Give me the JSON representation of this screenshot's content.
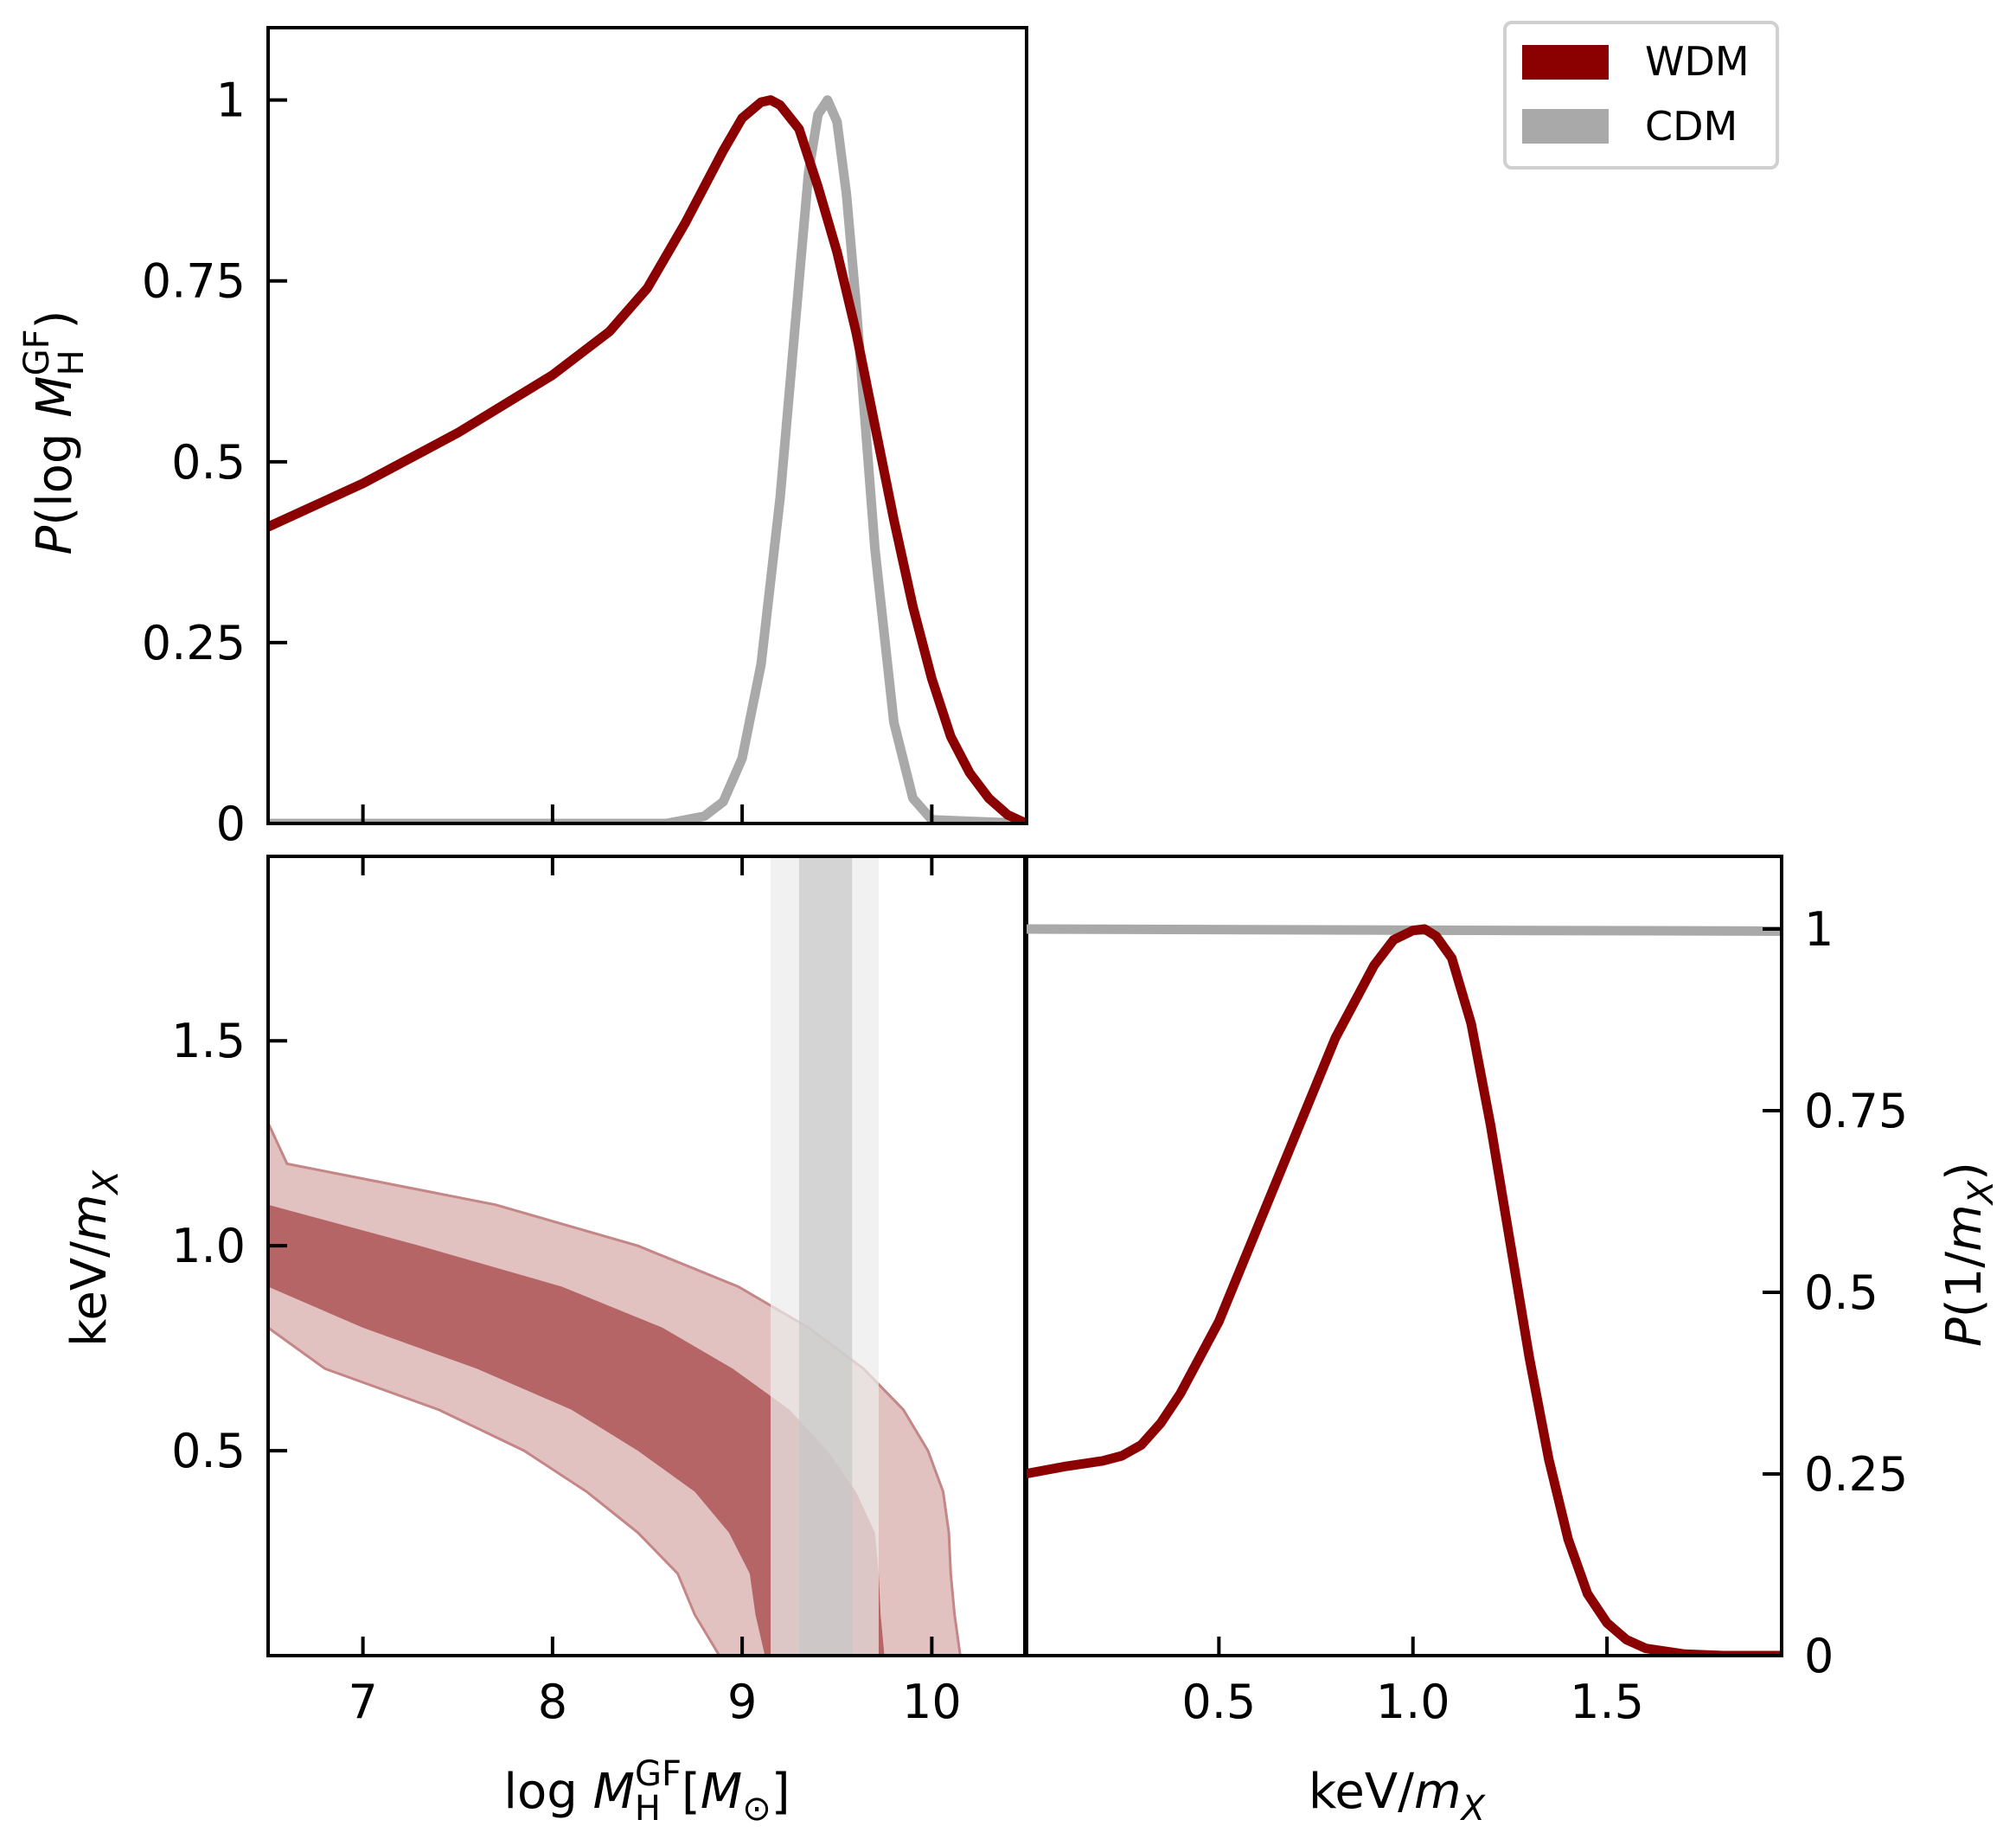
{
  "colors": {
    "wdm": "#8b0000",
    "cdm": "#a9a9a9",
    "wdm_band_inner": "#b56565",
    "wdm_band_outer": "#e2c1c1",
    "cdm_band_inner": "#c8c8c8",
    "cdm_band_outer": "#ebebeb"
  },
  "legend": {
    "items": [
      {
        "label": "WDM",
        "color": "#8b0000"
      },
      {
        "label": "CDM",
        "color": "#a9a9a9"
      }
    ],
    "position": "top-right"
  },
  "chart_data": [
    {
      "type": "line",
      "panel": "top-left",
      "title": "",
      "xlabel": "",
      "ylabel": "P(log M_H^GF)",
      "xlim": [
        6.5,
        10.5
      ],
      "ylim": [
        0,
        1.1
      ],
      "yticks": [
        {
          "value": 0,
          "label": "0"
        },
        {
          "value": 0.25,
          "label": "0.25"
        },
        {
          "value": 0.5,
          "label": "0.5"
        },
        {
          "value": 0.75,
          "label": "0.75"
        },
        {
          "value": 1,
          "label": "1"
        }
      ],
      "xticks": [
        7,
        8,
        9,
        10
      ],
      "series": [
        {
          "name": "WDM",
          "x": [
            6.5,
            7.0,
            7.5,
            8.0,
            8.3,
            8.5,
            8.7,
            8.9,
            9.0,
            9.1,
            9.15,
            9.2,
            9.3,
            9.4,
            9.5,
            9.6,
            9.7,
            9.8,
            9.9,
            10.0,
            10.1,
            10.2,
            10.3,
            10.4,
            10.5
          ],
          "y": [
            0.41,
            0.47,
            0.54,
            0.62,
            0.68,
            0.74,
            0.83,
            0.93,
            0.975,
            0.997,
            1.0,
            0.993,
            0.96,
            0.88,
            0.79,
            0.68,
            0.55,
            0.42,
            0.3,
            0.2,
            0.12,
            0.07,
            0.035,
            0.012,
            0.0
          ]
        },
        {
          "name": "CDM",
          "x": [
            6.5,
            8.6,
            8.8,
            8.9,
            9.0,
            9.1,
            9.2,
            9.3,
            9.35,
            9.4,
            9.45,
            9.5,
            9.55,
            9.6,
            9.7,
            9.8,
            9.9,
            10.0,
            10.5
          ],
          "y": [
            0.0,
            0.0,
            0.01,
            0.03,
            0.09,
            0.22,
            0.45,
            0.75,
            0.9,
            0.98,
            1.0,
            0.97,
            0.87,
            0.72,
            0.38,
            0.14,
            0.035,
            0.005,
            0.0
          ]
        }
      ]
    },
    {
      "type": "area",
      "panel": "bottom-left",
      "xlabel": "log M_H^GF [M_⊙]",
      "ylabel": "keV/m_X",
      "xlim": [
        6.5,
        10.5
      ],
      "ylim": [
        0,
        1.95
      ],
      "xticks": [
        {
          "value": 7,
          "label": "7"
        },
        {
          "value": 8,
          "label": "8"
        },
        {
          "value": 9,
          "label": "9"
        },
        {
          "value": 10,
          "label": "10"
        }
      ],
      "yticks": [
        {
          "value": 0.5,
          "label": "0.5"
        },
        {
          "value": 1.0,
          "label": "1.0"
        },
        {
          "value": 1.5,
          "label": "1.5"
        }
      ],
      "wdm_bands": {
        "y": [
          1.95,
          1.8,
          1.6,
          1.45,
          1.3,
          1.2,
          1.1,
          1.0,
          0.9,
          0.8,
          0.7,
          0.6,
          0.5,
          0.4,
          0.3,
          0.2,
          0.1,
          0.0
        ],
        "outer_left": [
          6.5,
          6.5,
          6.5,
          6.5,
          6.5,
          6.5,
          6.5,
          6.5,
          6.5,
          6.5,
          6.8,
          7.4,
          7.85,
          8.18,
          8.45,
          8.66,
          8.75,
          8.88
        ],
        "inner_left": [
          6.5,
          6.5,
          6.5,
          6.5,
          6.5,
          6.5,
          6.5,
          6.5,
          6.5,
          7.0,
          7.6,
          8.1,
          8.45,
          8.75,
          8.93,
          9.04,
          9.07,
          9.12
        ],
        "inner_right": [
          6.5,
          6.5,
          6.5,
          6.5,
          6.5,
          6.5,
          6.5,
          7.3,
          8.05,
          8.58,
          8.95,
          9.25,
          9.45,
          9.6,
          9.7,
          9.72,
          9.73,
          9.75
        ],
        "outer_right": [
          6.5,
          6.5,
          6.5,
          6.5,
          6.5,
          6.6,
          7.7,
          8.45,
          8.98,
          9.35,
          9.64,
          9.85,
          9.98,
          10.06,
          10.09,
          10.1,
          10.12,
          10.15
        ]
      },
      "cdm_bands": {
        "outer": [
          9.15,
          9.72
        ],
        "inner": [
          9.3,
          9.58
        ]
      }
    },
    {
      "type": "line",
      "panel": "bottom-right",
      "xlabel": "keV/m_X",
      "ylabel": "P(1/m_X)",
      "xlim": [
        0.0,
        1.95
      ],
      "ylim": [
        0,
        1.1
      ],
      "xticks": [
        {
          "value": 0.5,
          "label": "0.5"
        },
        {
          "value": 1.0,
          "label": "1.0"
        },
        {
          "value": 1.5,
          "label": "1.5"
        }
      ],
      "yticks": [
        {
          "value": 0,
          "label": "0"
        },
        {
          "value": 0.25,
          "label": "0.25"
        },
        {
          "value": 0.5,
          "label": "0.5"
        },
        {
          "value": 0.75,
          "label": "0.75"
        },
        {
          "value": 1,
          "label": "1"
        }
      ],
      "series": [
        {
          "name": "WDM",
          "x": [
            0.0,
            0.1,
            0.2,
            0.25,
            0.3,
            0.35,
            0.4,
            0.5,
            0.6,
            0.7,
            0.8,
            0.9,
            0.95,
            1.0,
            1.03,
            1.06,
            1.1,
            1.15,
            1.2,
            1.25,
            1.3,
            1.35,
            1.4,
            1.45,
            1.5,
            1.55,
            1.6,
            1.7,
            1.8,
            1.95
          ],
          "y": [
            0.25,
            0.26,
            0.268,
            0.275,
            0.29,
            0.32,
            0.36,
            0.46,
            0.59,
            0.72,
            0.85,
            0.95,
            0.985,
            0.998,
            1.0,
            0.99,
            0.96,
            0.87,
            0.73,
            0.57,
            0.41,
            0.27,
            0.16,
            0.085,
            0.045,
            0.022,
            0.01,
            0.002,
            0.0,
            0.0
          ]
        },
        {
          "name": "CDM",
          "x": [
            0.0,
            1.95
          ],
          "y": [
            1.0,
            0.997
          ]
        }
      ]
    }
  ]
}
